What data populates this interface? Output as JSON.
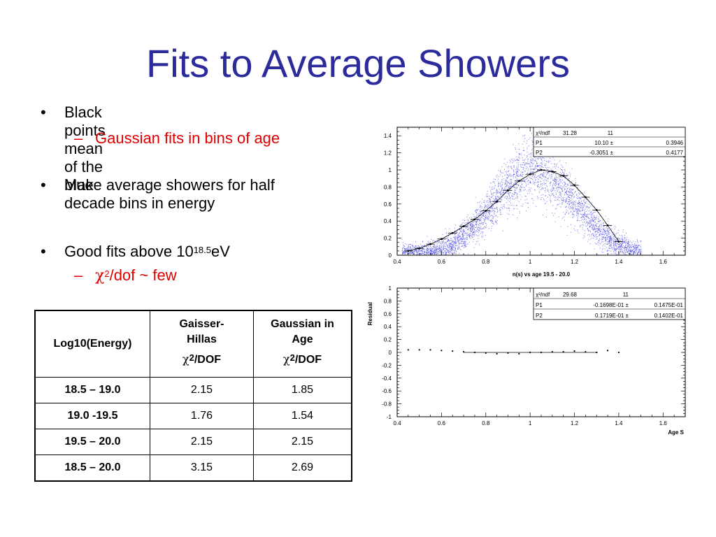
{
  "slide": {
    "title": "Fits to Average Showers",
    "bullets": [
      {
        "text": "Black points mean of the blue"
      },
      {
        "sub": "Gaussian fits in bins of age"
      },
      {
        "text_line1": "Make average showers for half",
        "text_line2": "decade bins in energy"
      },
      {
        "text_pre": "Good fits above 10",
        "text_sup": "18.5",
        "text_post": "eV"
      },
      {
        "sub_chi": "χ",
        "sub_sup": "2",
        "sub_post": "/dof ~ few"
      }
    ]
  },
  "table": {
    "headers": [
      {
        "l1": "Log10(Energy)"
      },
      {
        "l1": "Gaisser-",
        "l2": "Hillas",
        "l3a": "χ",
        "l3b": "2",
        "l3c": "/DOF"
      },
      {
        "l1": "Gaussian in",
        "l2": "Age",
        "l3a": "χ",
        "l3b": "2",
        "l3c": "/DOF"
      }
    ],
    "rows": [
      {
        "label": "18.5 – 19.0",
        "gh": "2.15",
        "ga": "1.85"
      },
      {
        "label": "19.0 -19.5",
        "gh": "1.76",
        "ga": "1.54"
      },
      {
        "label": "19.5 – 20.0",
        "gh": "2.15",
        "ga": "2.15"
      },
      {
        "label": "18.5 – 20.0",
        "gh": "3.15",
        "ga": "2.69"
      }
    ]
  },
  "colors": {
    "title": "#2b2b9c",
    "sub_bullet": "#e00000",
    "scatter": "#4a4ae0",
    "points": "#000000"
  },
  "chart_data": [
    {
      "type": "scatter",
      "title": "",
      "xlabel": "n(s) vs age 19.5 - 20.0",
      "ylabel": "",
      "xlim": [
        0.4,
        1.7
      ],
      "ylim": [
        0,
        1.5
      ],
      "xticks": [
        "0.4",
        "0.6",
        "0.8",
        "1",
        "1.2",
        "1.4",
        "1.6"
      ],
      "yticks": [
        "0",
        "0.2",
        "0.4",
        "0.6",
        "0.8",
        "1",
        "1.2",
        "1.4"
      ],
      "stats": {
        "chi2_label": "χ²/ndf",
        "chi2": "31.28",
        "ndf": "11",
        "p1_label": "P1",
        "p1": "10.10",
        "p1_err": "0.3946",
        "p2_label": "P2",
        "p2": "-0.3051",
        "p2_err": "0.4177"
      },
      "series": [
        {
          "values_x": [
            0.45,
            0.5,
            0.55,
            0.6,
            0.65,
            0.7,
            0.75,
            0.8,
            0.85,
            0.9,
            0.95,
            1.0,
            1.05,
            1.1,
            1.15,
            1.2,
            1.25,
            1.3,
            1.35,
            1.4
          ],
          "values_y": [
            0.06,
            0.09,
            0.13,
            0.19,
            0.26,
            0.35,
            0.44,
            0.55,
            0.67,
            0.78,
            0.9,
            0.98,
            1.01,
            0.97,
            0.9,
            0.76,
            0.62,
            0.48,
            0.34,
            0.23
          ]
        }
      ],
      "mean_points": {
        "x": [
          0.45,
          0.5,
          0.55,
          0.6,
          0.65,
          0.7,
          0.75,
          0.8,
          0.85,
          0.9,
          0.95,
          1.0,
          1.05,
          1.1,
          1.15,
          1.2,
          1.25,
          1.3,
          1.35,
          1.4
        ],
        "y": [
          0.05,
          0.08,
          0.13,
          0.19,
          0.26,
          0.34,
          0.42,
          0.52,
          0.63,
          0.76,
          0.87,
          0.95,
          1.0,
          0.98,
          0.93,
          0.82,
          0.68,
          0.53,
          0.35,
          0.16
        ]
      }
    },
    {
      "type": "scatter",
      "title": "",
      "xlabel": "Age S",
      "ylabel": "Residual",
      "xlim": [
        0.4,
        1.7
      ],
      "ylim": [
        -1,
        1
      ],
      "xticks": [
        "0.4",
        "0.6",
        "0.8",
        "1",
        "1.2",
        "1.4",
        "1.6"
      ],
      "yticks": [
        "-1",
        "-0.8",
        "-0.6",
        "-0.4",
        "-0.2",
        "0",
        "0.2",
        "0.4",
        "0.6",
        "0.8",
        "1"
      ],
      "stats": {
        "chi2_label": "χ²/ndf",
        "chi2": "29.68",
        "ndf": "11",
        "p1_label": "P1",
        "p1": "-0.1698E-01",
        "p1_err": "0.1475E-01",
        "p2_label": "P2",
        "p2": "0.1719E-01",
        "p2_err": "0.1402E-01"
      },
      "series": [
        {
          "values_x": [
            0.45,
            0.5,
            0.55,
            0.6,
            0.65,
            0.7,
            0.75,
            0.8,
            0.85,
            0.9,
            0.95,
            1.0,
            1.05,
            1.1,
            1.15,
            1.2,
            1.25,
            1.3,
            1.35,
            1.4
          ],
          "values_y": [
            0.04,
            0.04,
            0.04,
            0.03,
            0.02,
            0.01,
            0.0,
            -0.01,
            -0.02,
            -0.01,
            -0.02,
            0.0,
            0.0,
            0.01,
            0.01,
            0.02,
            0.01,
            0.0,
            0.03,
            0.0
          ]
        }
      ],
      "fit_line": {
        "x": [
          0.7,
          1.3
        ],
        "y": [
          0.0,
          0.0
        ]
      }
    }
  ]
}
